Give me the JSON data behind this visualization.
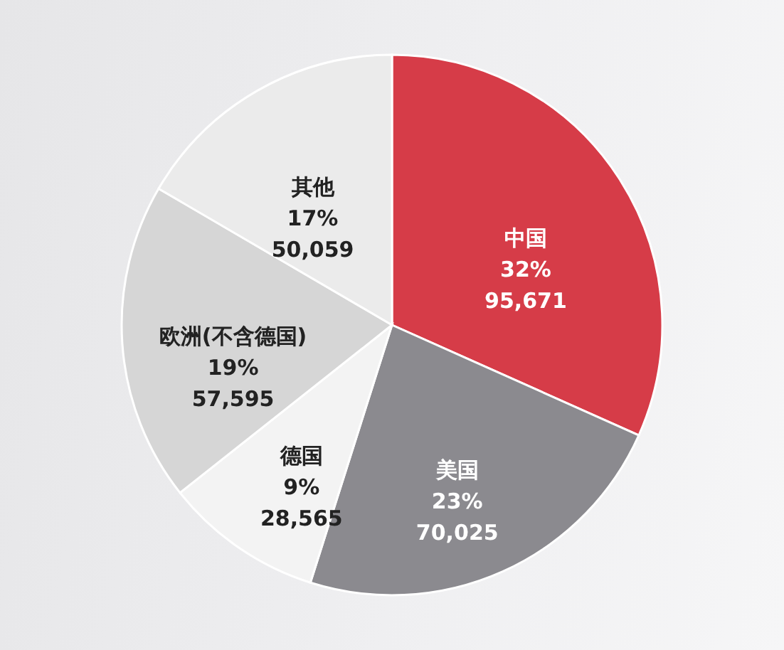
{
  "chart_data": {
    "type": "pie",
    "categories": [
      "中国",
      "美国",
      "德国",
      "欧洲(不含德国)",
      "其他"
    ],
    "values": [
      95671,
      70025,
      28565,
      57595,
      50059
    ],
    "colors": [
      "#d63c48",
      "#8b8a8f",
      "#f3f3f3",
      "#d6d6d6",
      "#ebebeb"
    ],
    "value_labels": [
      "32%\n95,671",
      "23%\n70,025",
      "9%\n28,565",
      "19%\n57,595",
      "17%\n50,059"
    ]
  }
}
